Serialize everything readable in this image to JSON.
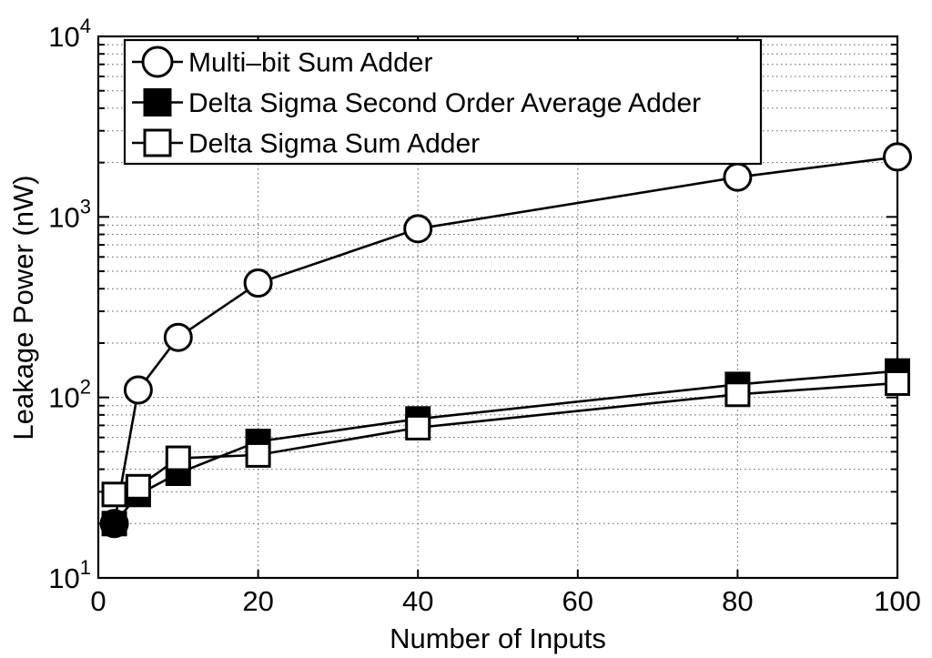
{
  "figure": {
    "background": "#ffffff",
    "frame_color": "#000000",
    "grid_color": "#666666"
  },
  "chart_data": {
    "type": "line",
    "xlabel": "Number of Inputs",
    "ylabel": "Leakage Power (nW)",
    "x_scale": "linear",
    "y_scale": "log",
    "xlim": [
      0,
      100
    ],
    "ylim": [
      10,
      10000
    ],
    "x_ticks": [
      0,
      20,
      40,
      60,
      80,
      100
    ],
    "y_ticks": [
      "10^1",
      "10^2",
      "10^3",
      "10^4"
    ],
    "y_tick_exponents": [
      1,
      2,
      3,
      4
    ],
    "grid": "dotted major and log-minor gridlines",
    "legend_position": "top-left inside plot",
    "x": [
      2,
      5,
      10,
      20,
      40,
      80,
      100
    ],
    "series": [
      {
        "name": "Multi–bit Sum Adder",
        "marker": "open-circle",
        "color": "#000000",
        "values": [
          20,
          110,
          215,
          430,
          860,
          1660,
          2150
        ]
      },
      {
        "name": "Delta Sigma Second Order Average Adder",
        "marker": "filled-square",
        "color": "#000000",
        "values": [
          20,
          29,
          38,
          57,
          76,
          118,
          140
        ]
      },
      {
        "name": "Delta Sigma Sum Adder",
        "marker": "open-square",
        "color": "#000000",
        "values": [
          29,
          32,
          46,
          48,
          68,
          104,
          120
        ]
      }
    ]
  }
}
